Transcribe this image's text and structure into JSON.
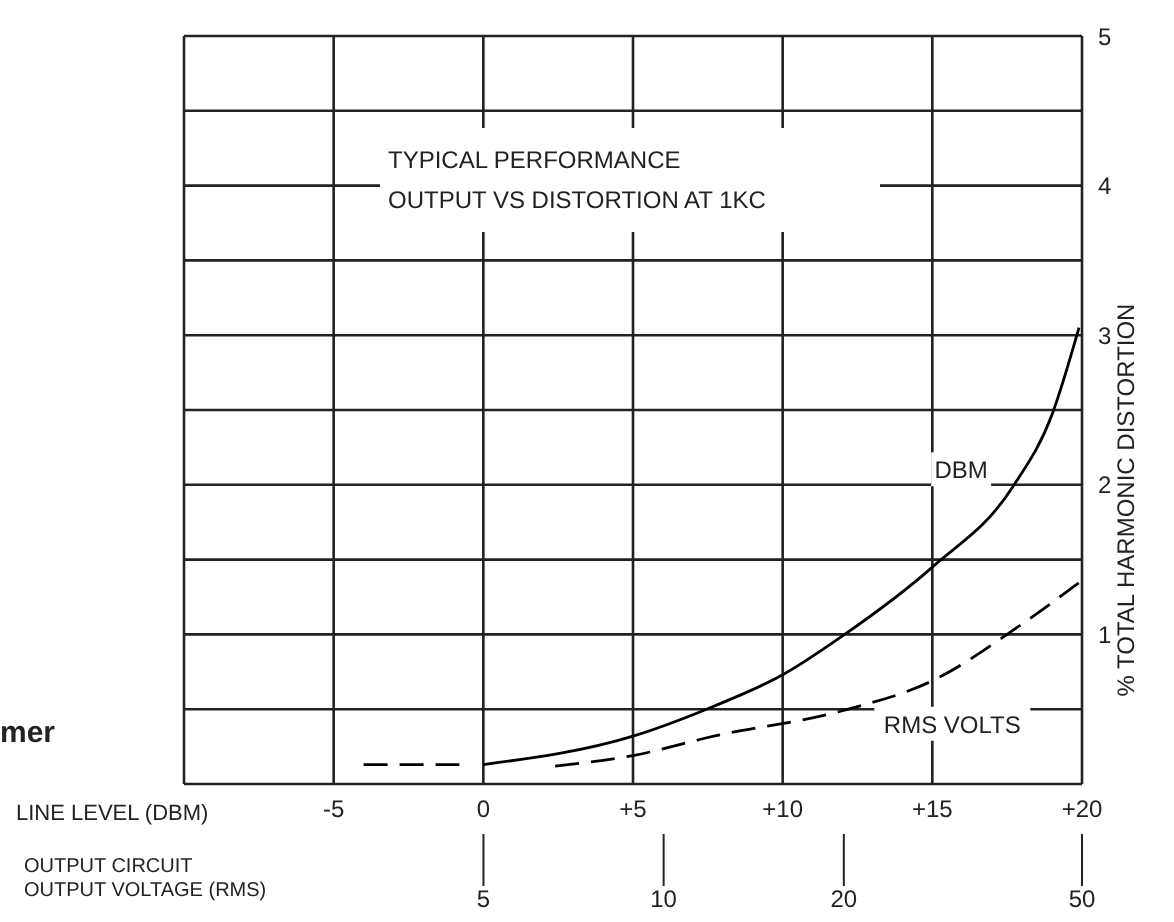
{
  "chart_data": {
    "type": "line",
    "title": "TYPICAL PERFORMANCE",
    "subtitle": "OUTPUT VS DISTORTION AT 1KC",
    "xlabel": "LINE LEVEL (DBM)",
    "x2label": "OUTPUT CIRCUIT\nOUTPUT VOLTAGE (RMS)",
    "ylabel": "% TOTAL HARMONIC DISTORTION",
    "annotations": [
      "mer"
    ],
    "xlim": [
      -10,
      20
    ],
    "xticks": [
      -5,
      0,
      {
        "value": 5,
        "label": "+5"
      },
      {
        "value": 10,
        "label": "+10"
      },
      {
        "value": 15,
        "label": "+15"
      },
      {
        "value": 20,
        "label": "+20"
      }
    ],
    "x2lim": [
      1.58,
      50
    ],
    "x2ticks": [
      5,
      10,
      20,
      50
    ],
    "log": "x2",
    "ylim": [
      0,
      5
    ],
    "yticks": [
      {
        "value": 0.5,
        "label": null
      },
      1,
      {
        "value": 1.5,
        "label": null
      },
      2,
      {
        "value": 2.5,
        "label": null
      },
      3,
      {
        "value": 3.5,
        "label": null
      },
      4,
      {
        "value": 4.5,
        "label": null
      },
      5
    ],
    "grid": true,
    "marker": "none",
    "series": [
      {
        "name": "DBM",
        "color": "#000000",
        "line_style": "solid",
        "x": [
          0,
          5,
          7.7,
          10,
          12,
          15,
          17.7,
          19,
          19.9
        ],
        "values": [
          0.13,
          0.32,
          0.52,
          0.73,
          0.99,
          1.45,
          1.99,
          2.47,
          3.05
        ]
      },
      {
        "name": "RMS VOLTS",
        "color": "#000000",
        "line_style": "dashed",
        "x": [
          2.4,
          5,
          7.7,
          12,
          15,
          18,
          20
        ],
        "values": [
          0.12,
          0.19,
          0.32,
          0.49,
          0.69,
          1.07,
          1.36
        ]
      },
      {
        "color": "#000000",
        "line_style": "dashed",
        "x": [
          -4,
          -0.8
        ],
        "values": [
          0.13,
          0.13
        ]
      }
    ]
  }
}
